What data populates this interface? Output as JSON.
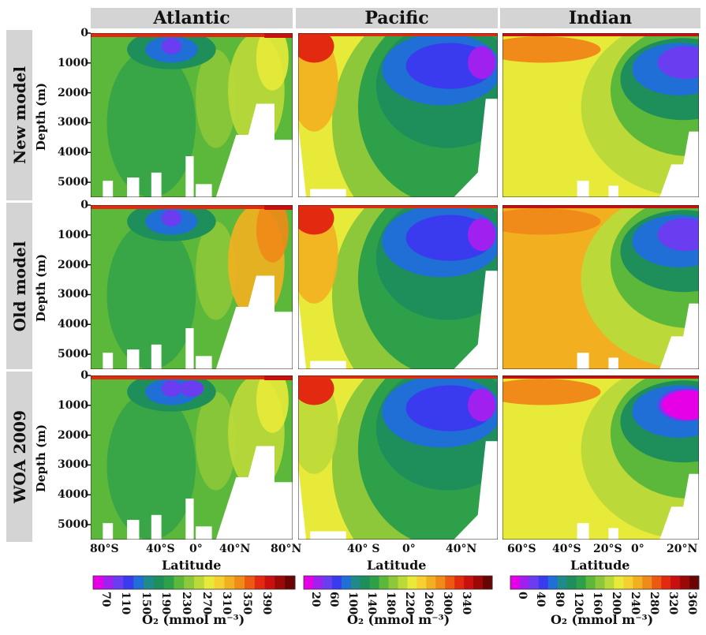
{
  "columns": [
    "Atlantic",
    "Pacific",
    "Indian"
  ],
  "rows": [
    "New model",
    "Old model",
    "WOA 2009"
  ],
  "y_axis": {
    "label": "Depth (m)",
    "ticks": [
      "0",
      "1000",
      "2000",
      "3000",
      "4000",
      "5000"
    ]
  },
  "x_axis": {
    "label": "Latitude",
    "atlantic_ticks": [
      "80°S",
      "40°S",
      "0°",
      "40°N",
      "80°N"
    ],
    "pacific_ticks": [
      "40° S",
      "0°",
      "40°N"
    ],
    "indian_ticks": [
      "60°S",
      "40°S",
      "20°S",
      "0°",
      "20°N"
    ]
  },
  "colorbars": [
    {
      "ticks": [
        "70",
        "110",
        "150",
        "190",
        "230",
        "270",
        "310",
        "350",
        "390"
      ]
    },
    {
      "ticks": [
        "20",
        "60",
        "100",
        "140",
        "180",
        "220",
        "260",
        "300",
        "340"
      ]
    },
    {
      "ticks": [
        "0",
        "40",
        "80",
        "120",
        "160",
        "200",
        "240",
        "280",
        "320",
        "360"
      ]
    }
  ],
  "colorbar_title": "O₂ (mmol m⁻³)",
  "colors": [
    "#e600e6",
    "#a020f0",
    "#6a3df0",
    "#3a3aef",
    "#1f6fd6",
    "#1f8a8a",
    "#1e8f5a",
    "#2fa04a",
    "#5cb83a",
    "#8cc83a",
    "#bcd93a",
    "#e8ea3a",
    "#f5d030",
    "#f2b020",
    "#f08a18",
    "#ec5a12",
    "#e22a10",
    "#c81010",
    "#9a0808",
    "#6a0404"
  ],
  "chart_data": {
    "type": "heatmap",
    "title": "",
    "variable": "O₂ (mmol m⁻³)",
    "panels": [
      {
        "row": "New model",
        "column": "Atlantic"
      },
      {
        "row": "New model",
        "column": "Pacific"
      },
      {
        "row": "New model",
        "column": "Indian"
      },
      {
        "row": "Old model",
        "column": "Atlantic"
      },
      {
        "row": "Old model",
        "column": "Pacific"
      },
      {
        "row": "Old model",
        "column": "Indian"
      },
      {
        "row": "WOA 2009",
        "column": "Atlantic"
      },
      {
        "row": "WOA 2009",
        "column": "Pacific"
      },
      {
        "row": "WOA 2009",
        "column": "Indian"
      }
    ],
    "ylabel": "Depth (m)",
    "ylim": [
      5500,
      0
    ],
    "xlabel": "Latitude",
    "xlim_atlantic": [
      -80,
      85
    ],
    "xlim_pacific": [
      -75,
      65
    ],
    "xlim_indian": [
      -75,
      25
    ],
    "colorbar_ranges": [
      [
        70,
        390
      ],
      [
        20,
        340
      ],
      [
        0,
        360
      ]
    ]
  }
}
